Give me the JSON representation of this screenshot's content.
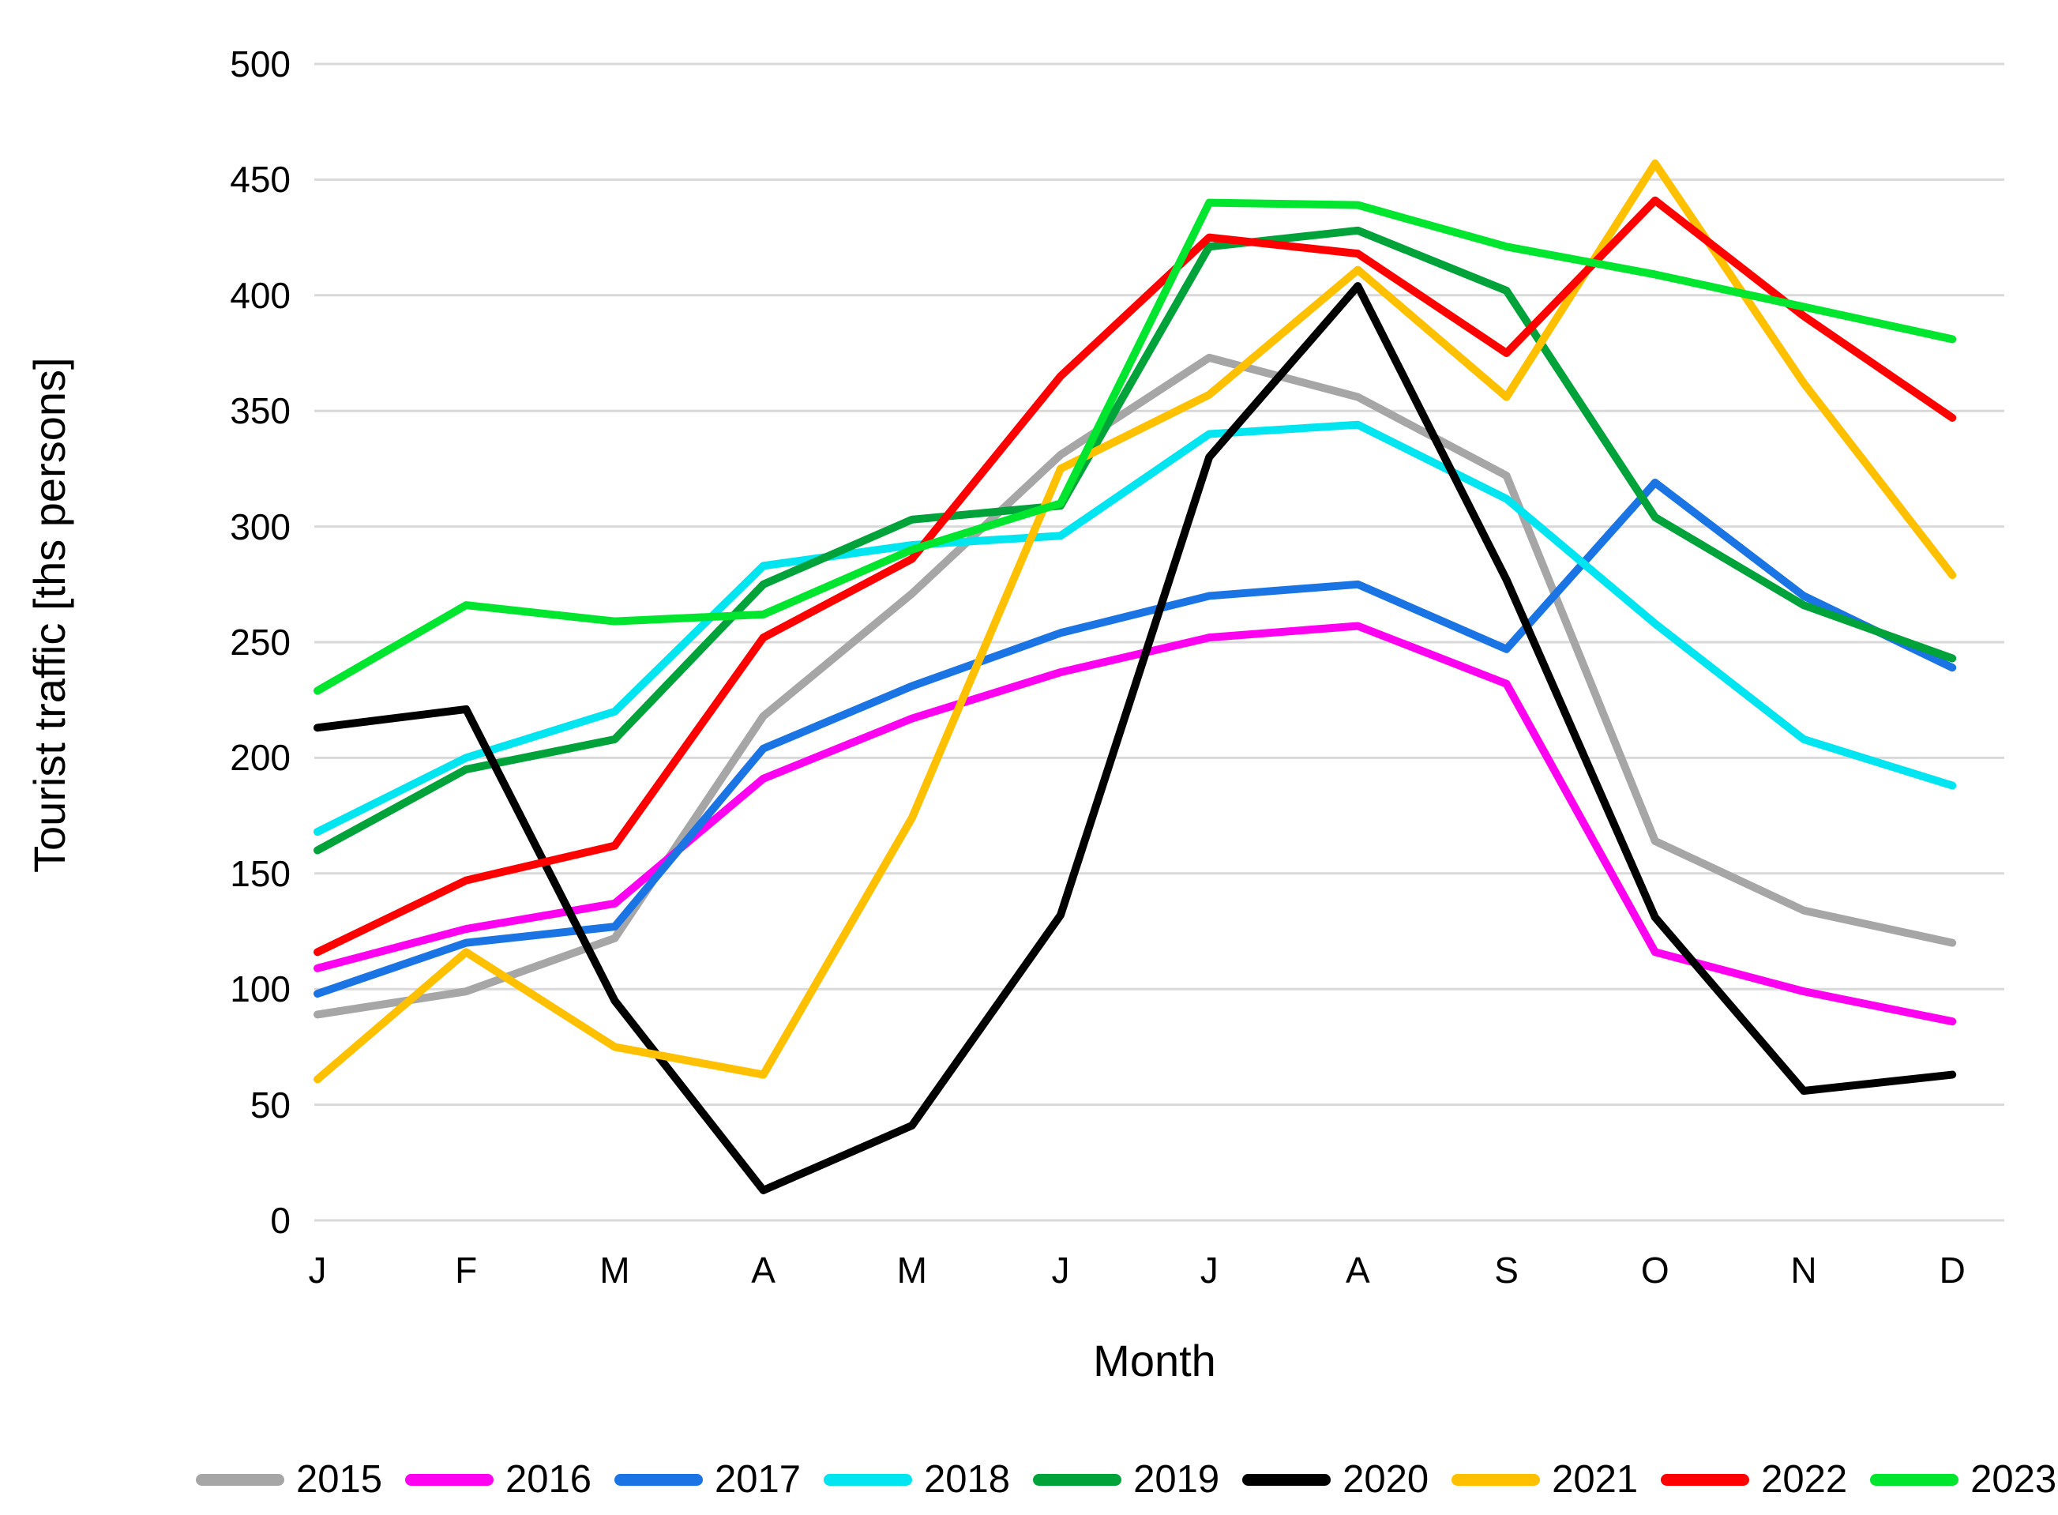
{
  "chart_data": {
    "type": "line",
    "title": "",
    "xlabel": "Month",
    "ylabel": "Tourist traffic [ths persons]",
    "categories": [
      "J",
      "F",
      "M",
      "A",
      "M",
      "J",
      "J",
      "A",
      "S",
      "O",
      "N",
      "D"
    ],
    "ylim": [
      0,
      500
    ],
    "ytick_step": 50,
    "yticks": [
      0,
      50,
      100,
      150,
      200,
      250,
      300,
      350,
      400,
      450,
      500
    ],
    "grid": "horizontal",
    "legend_position": "bottom",
    "gridline_color": "#D9D9D9",
    "text_color": "#000000",
    "series": [
      {
        "name": "2015",
        "color": "#A6A6A6",
        "values": [
          89,
          99,
          122,
          218,
          271,
          331,
          373,
          356,
          322,
          164,
          134,
          120
        ]
      },
      {
        "name": "2016",
        "color": "#FF00F0",
        "values": [
          109,
          126,
          137,
          191,
          217,
          237,
          252,
          257,
          232,
          116,
          99,
          86
        ]
      },
      {
        "name": "2017",
        "color": "#1B74E4",
        "values": [
          98,
          120,
          127,
          204,
          231,
          254,
          270,
          275,
          247,
          319,
          270,
          239
        ]
      },
      {
        "name": "2018",
        "color": "#00E5F0",
        "values": [
          168,
          200,
          220,
          283,
          292,
          296,
          340,
          344,
          312,
          258,
          208,
          188
        ]
      },
      {
        "name": "2019",
        "color": "#00A23A",
        "values": [
          160,
          195,
          208,
          275,
          303,
          309,
          421,
          428,
          402,
          304,
          266,
          243
        ]
      },
      {
        "name": "2020",
        "color": "#000000",
        "values": [
          213,
          221,
          95,
          13,
          41,
          132,
          330,
          404,
          277,
          131,
          56,
          63
        ]
      },
      {
        "name": "2021",
        "color": "#FFC000",
        "values": [
          61,
          116,
          75,
          63,
          174,
          325,
          357,
          411,
          356,
          457,
          362,
          279
        ]
      },
      {
        "name": "2022",
        "color": "#FF0000",
        "values": [
          116,
          147,
          162,
          252,
          286,
          365,
          425,
          418,
          375,
          441,
          391,
          347
        ]
      },
      {
        "name": "2023",
        "color": "#00E62E",
        "values": [
          229,
          266,
          259,
          262,
          290,
          310,
          440,
          439,
          421,
          409,
          395,
          381
        ]
      }
    ]
  }
}
